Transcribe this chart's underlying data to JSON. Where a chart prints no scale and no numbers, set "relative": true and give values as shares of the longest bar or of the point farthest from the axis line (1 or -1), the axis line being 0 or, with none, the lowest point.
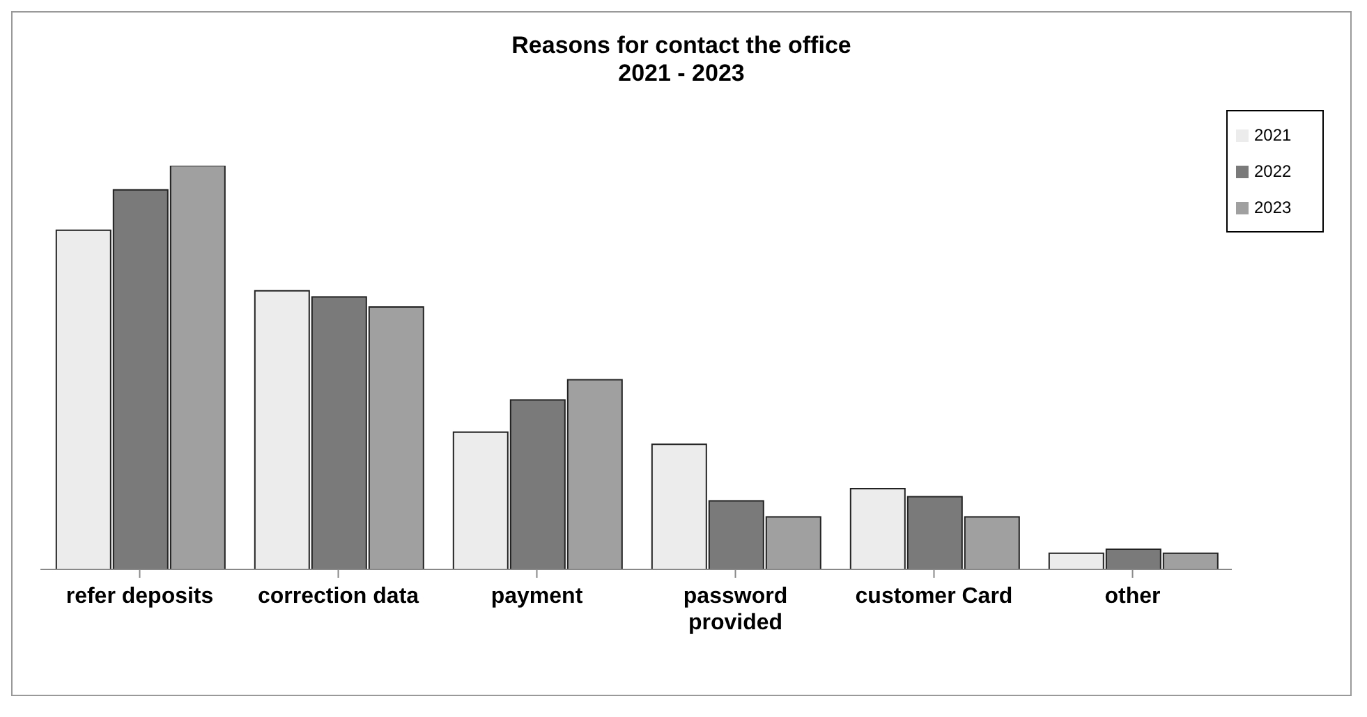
{
  "chart_data": {
    "type": "bar",
    "title": "Reasons for contact the office",
    "subtitle": "2021 - 2023",
    "relative": true,
    "legend": "top right",
    "categories": [
      "refer deposits",
      "correction data",
      "payment",
      "password provided",
      "customer Card",
      "other"
    ],
    "series": [
      {
        "name": "2021",
        "color": "#ececec",
        "values": [
          0.84,
          0.69,
          0.34,
          0.31,
          0.2,
          0.04
        ]
      },
      {
        "name": "2022",
        "color": "#7a7a7a",
        "values": [
          0.94,
          0.675,
          0.42,
          0.17,
          0.18,
          0.05
        ]
      },
      {
        "name": "2023",
        "color": "#a0a0a0",
        "values": [
          1,
          0.65,
          0.47,
          0.13,
          0.13,
          0.04
        ]
      }
    ]
  }
}
